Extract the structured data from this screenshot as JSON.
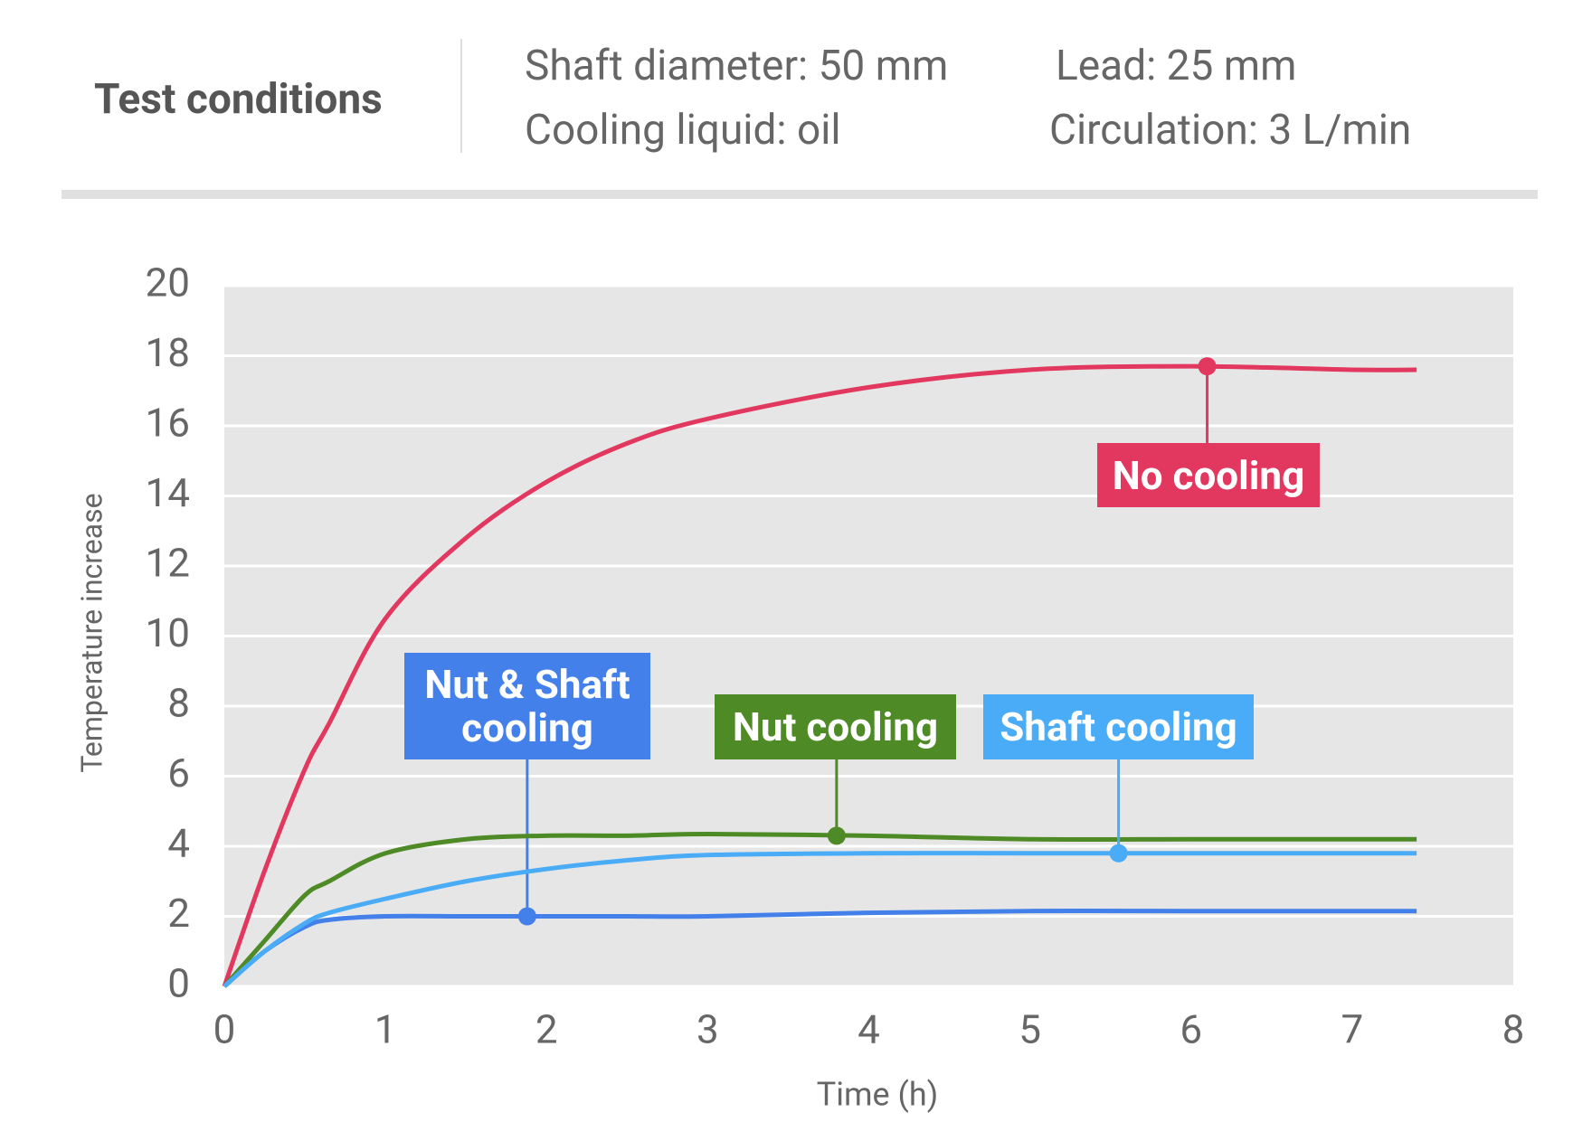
{
  "header": {
    "title": "Test conditions",
    "conditions": [
      "Shaft diameter: 50 mm",
      "Lead: 25 mm",
      "Cooling liquid: oil",
      "Circulation: 3 L/min"
    ]
  },
  "chart_data": {
    "type": "line",
    "x_label": "Time (h)",
    "y_label": "Temperature increase",
    "x": [
      0,
      0.25,
      0.5,
      0.65,
      1,
      1.5,
      2,
      2.5,
      3,
      4,
      5,
      6,
      7,
      7.4
    ],
    "xlim": [
      0,
      8
    ],
    "xticks": [
      0,
      1,
      2,
      3,
      4,
      5,
      6,
      7,
      8
    ],
    "ylim": [
      0,
      20
    ],
    "yticks": [
      0,
      2,
      4,
      6,
      8,
      10,
      12,
      14,
      16,
      18,
      20
    ],
    "grid": true,
    "series": [
      {
        "name": "No cooling",
        "color": "#e2385f",
        "values": [
          0,
          3.3,
          6.2,
          7.5,
          10.5,
          12.8,
          14.4,
          15.5,
          16.2,
          17.1,
          17.6,
          17.7,
          17.6,
          17.6
        ],
        "marker": {
          "x": 6.1,
          "y": 17.7
        }
      },
      {
        "name": "Nut & Shaft cooling",
        "color": "#4480ea",
        "values": [
          0,
          1.0,
          1.7,
          1.9,
          2.0,
          2.0,
          2.0,
          2.0,
          2.0,
          2.1,
          2.15,
          2.15,
          2.15,
          2.15
        ],
        "marker": {
          "x": 1.88,
          "y": 2.0
        }
      },
      {
        "name": "Nut cooling",
        "color": "#4e8a26",
        "values": [
          0,
          1.3,
          2.6,
          3.0,
          3.8,
          4.2,
          4.3,
          4.3,
          4.35,
          4.3,
          4.2,
          4.2,
          4.2,
          4.2
        ],
        "marker": {
          "x": 3.8,
          "y": 4.3
        }
      },
      {
        "name": "Shaft cooling",
        "color": "#4aacf7",
        "values": [
          0,
          1.0,
          1.8,
          2.1,
          2.5,
          3.0,
          3.35,
          3.6,
          3.75,
          3.8,
          3.8,
          3.8,
          3.8,
          3.8
        ],
        "marker": {
          "x": 5.55,
          "y": 3.8
        }
      }
    ]
  }
}
